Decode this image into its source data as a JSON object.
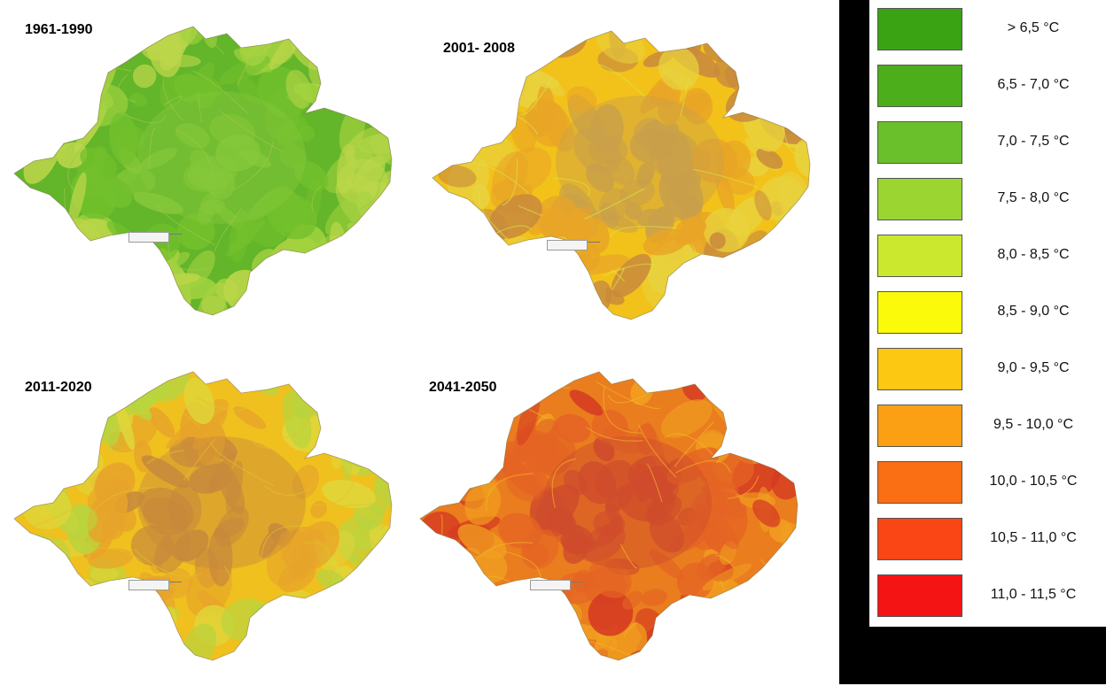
{
  "maps": [
    {
      "title": "1961-1990",
      "palette": [
        "#63b52a",
        "#72c02c",
        "#86c83a",
        "#a3d23f",
        "#bcd64a",
        "#9ec64a"
      ]
    },
    {
      "title": "2001- 2008",
      "palette": [
        "#f2c21b",
        "#e9a526",
        "#c9a04a",
        "#e8d23e",
        "#c98a3c",
        "#d9e64a"
      ]
    },
    {
      "title": "2011-2020",
      "palette": [
        "#f0c01f",
        "#e7a42a",
        "#c7893c",
        "#dfd63a",
        "#b9d43e",
        "#e2bf2d"
      ]
    },
    {
      "title": "2041-2050",
      "palette": [
        "#ea7d1e",
        "#e46424",
        "#cf4b2c",
        "#d53a22",
        "#f19f20",
        "#f3b62a"
      ]
    }
  ],
  "legend": [
    {
      "label": "> 6,5 °C",
      "color": "#3aa314"
    },
    {
      "label": "6,5 - 7,0 °C",
      "color": "#4cae1a"
    },
    {
      "label": "7,0 - 7,5 °C",
      "color": "#6ac02a"
    },
    {
      "label": "7,5 - 8,0 °C",
      "color": "#9ad532"
    },
    {
      "label": "8,0 - 8,5 °C",
      "color": "#cce82e"
    },
    {
      "label": "8,5 - 9,0 °C",
      "color": "#fafa0a"
    },
    {
      "label": "9,0 - 9,5 °C",
      "color": "#fcc812"
    },
    {
      "label": "9,5 - 10,0 °C",
      "color": "#fba014"
    },
    {
      "label": "10,0 - 10,5 °C",
      "color": "#fa6e14"
    },
    {
      "label": "10,5 - 11,0 °C",
      "color": "#fa4614"
    },
    {
      "label": "11,0 - 11,5 °C",
      "color": "#f51414"
    }
  ]
}
